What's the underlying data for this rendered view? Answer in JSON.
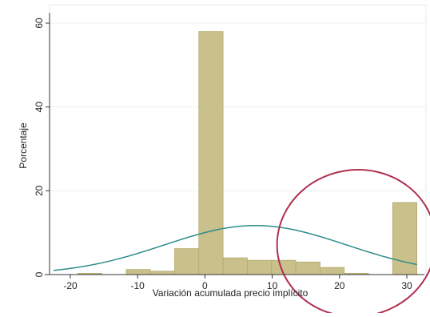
{
  "chart_data": {
    "type": "bar",
    "title": "",
    "xlabel": "Variación acumulada precio implícito",
    "ylabel": "Porcentaje",
    "xlim": [
      -25,
      33
    ],
    "ylim": [
      0,
      63
    ],
    "x_ticks": [
      -20,
      -10,
      0,
      10,
      20,
      30
    ],
    "y_ticks": [
      0,
      20,
      40,
      60
    ],
    "grid": true,
    "legend": "none",
    "bin_width": 3.6,
    "series": [
      {
        "kind": "histogram",
        "bins": [
          {
            "x0": -18.9,
            "x1": -15.3,
            "value": 0.3
          },
          {
            "x0": -11.7,
            "x1": -8.1,
            "value": 1.2
          },
          {
            "x0": -8.1,
            "x1": -4.5,
            "value": 0.8
          },
          {
            "x0": -4.5,
            "x1": -0.9,
            "value": 6.2
          },
          {
            "x0": -0.9,
            "x1": 2.7,
            "value": 58
          },
          {
            "x0": 2.7,
            "x1": 6.3,
            "value": 4.0
          },
          {
            "x0": 6.3,
            "x1": 9.9,
            "value": 3.4
          },
          {
            "x0": 9.9,
            "x1": 13.5,
            "value": 3.4
          },
          {
            "x0": 13.5,
            "x1": 17.1,
            "value": 3.0
          },
          {
            "x0": 17.1,
            "x1": 20.7,
            "value": 1.7
          },
          {
            "x0": 20.7,
            "x1": 24.3,
            "value": 0.3
          },
          {
            "x0": 27.9,
            "x1": 31.5,
            "value": 17.2
          }
        ]
      },
      {
        "kind": "normal-curve",
        "mean": 7.5,
        "sd": 13.5,
        "peak": 11.7,
        "x_range": [
          -22.5,
          31.5
        ]
      }
    ],
    "annotations": [
      {
        "type": "ellipse",
        "cx": 22.5,
        "cy": 7.5,
        "rx": 11.8,
        "ry": 17.5
      }
    ],
    "colors": {
      "bar_fill": "#c9c08c",
      "bar_stroke": "#b3a96c",
      "curve": "#2e8b8b",
      "annotation": "#b0304e",
      "grid": "#eaf0f0",
      "axis": "#333333"
    }
  }
}
